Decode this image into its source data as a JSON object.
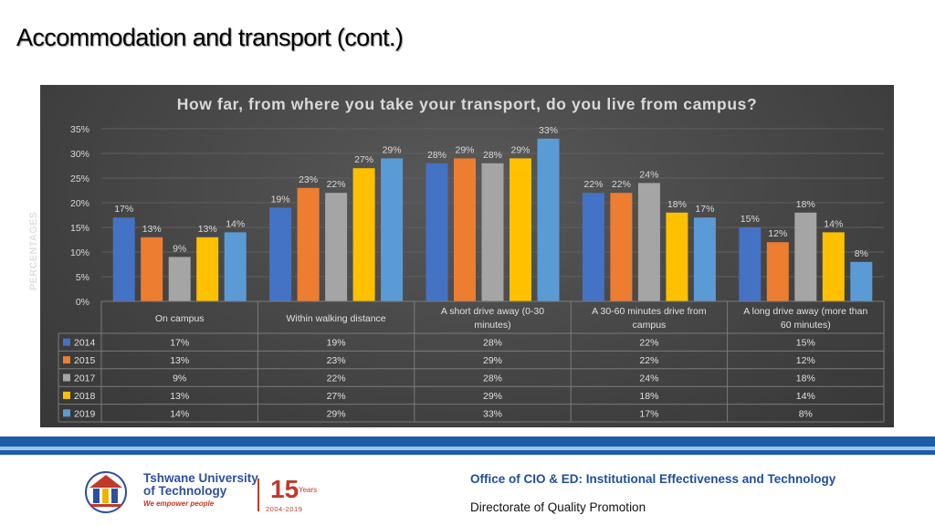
{
  "slide": {
    "title": "Accommodation and transport (cont.)"
  },
  "chart_data": {
    "type": "bar",
    "title": "How far, from where you take your transport, do you live from campus?",
    "ylabel": "PERCENTAGES",
    "xlabel": "",
    "ylim": [
      0,
      35
    ],
    "yticks": [
      "0%",
      "5%",
      "10%",
      "15%",
      "20%",
      "25%",
      "30%",
      "35%"
    ],
    "grid": true,
    "legend": "data-table",
    "categories": [
      "On campus",
      "Within walking distance",
      "A short drive away (0-30 minutes)",
      "A 30-60 minutes drive from campus",
      "A long drive away (more than 60 minutes)"
    ],
    "category_lines": [
      [
        "On campus"
      ],
      [
        "Within walking distance"
      ],
      [
        "A short drive away (0-30",
        "minutes)"
      ],
      [
        "A 30-60 minutes drive from",
        "campus"
      ],
      [
        "A long drive away (more than",
        "60 minutes)"
      ]
    ],
    "series": [
      {
        "name": "2014",
        "color": "#4472c4",
        "values": [
          17,
          19,
          28,
          22,
          15
        ]
      },
      {
        "name": "2015",
        "color": "#ed7d31",
        "values": [
          13,
          23,
          29,
          22,
          12
        ]
      },
      {
        "name": "2017",
        "color": "#a5a5a5",
        "values": [
          9,
          22,
          28,
          24,
          18
        ]
      },
      {
        "name": "2018",
        "color": "#ffc000",
        "values": [
          13,
          27,
          29,
          18,
          14
        ]
      },
      {
        "name": "2019",
        "color": "#5b9bd5",
        "values": [
          14,
          29,
          33,
          17,
          8
        ]
      }
    ]
  },
  "footer": {
    "office": "Office of CIO & ED: Institutional  Effectiveness and Technology",
    "directorate": "Directorate of Quality Promotion",
    "university_line1": "Tshwane University",
    "university_line2": "of Technology",
    "tagline": "We empower people",
    "anniversary_number": "15",
    "anniversary_word": "Years",
    "anniversary_span": "2004-2019"
  }
}
